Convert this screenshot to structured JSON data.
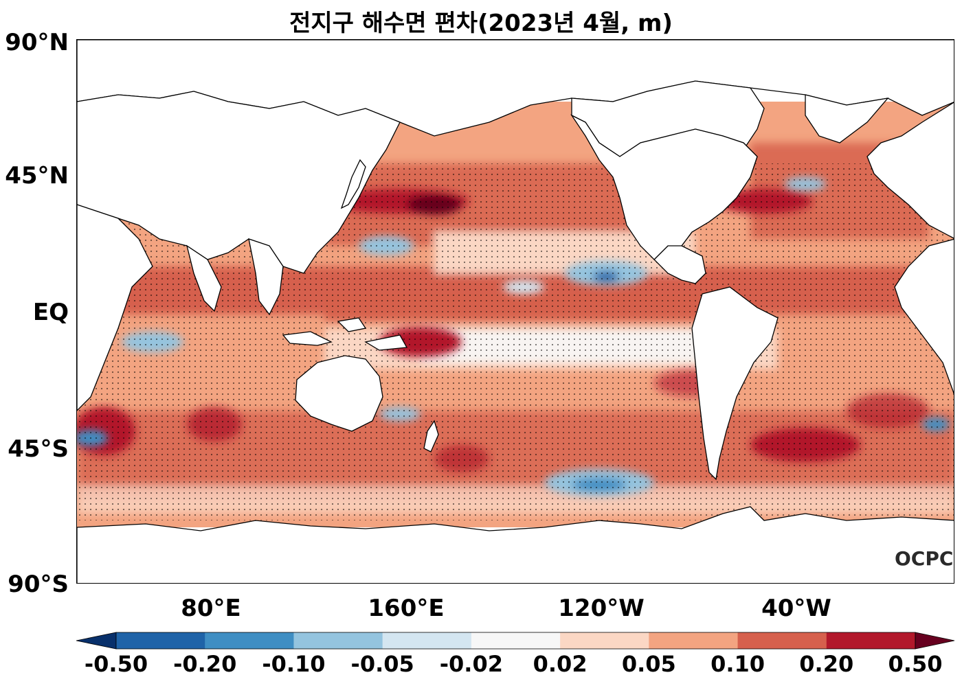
{
  "title": "전지구 해수면 편차(2023년 4월, m)",
  "map": {
    "description_values": "sea level anomaly map, Pacific-centered",
    "lat_labels": [
      "90°N",
      "45°N",
      "EQ",
      "45°S",
      "90°S"
    ],
    "lon_labels": [
      "80°E",
      "160°E",
      "120°W",
      "40°W"
    ],
    "watermark": "OCPC"
  },
  "colorbar": {
    "levels": [
      "-0.50",
      "-0.20",
      "-0.10",
      "-0.05",
      "-0.02",
      "0.02",
      "0.05",
      "0.10",
      "0.20",
      "0.50"
    ],
    "colors": [
      "#08306b",
      "#1f63a8",
      "#3f8ec3",
      "#94c4df",
      "#d4e6f1",
      "#f7f7f7",
      "#fbd7c4",
      "#f3a481",
      "#d6604d",
      "#b2182b",
      "#67001f"
    ]
  },
  "palette": {
    "land": "#ffffff",
    "coast": "#000000",
    "stipple": "#000000"
  }
}
